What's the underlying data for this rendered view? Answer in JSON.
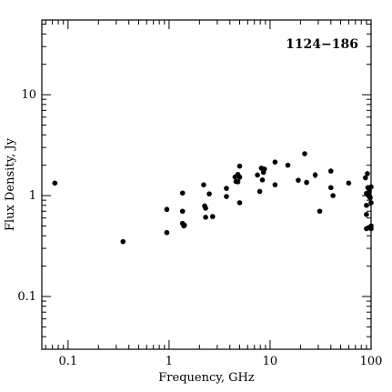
{
  "chart_data": {
    "type": "scatter",
    "title": "1124−186",
    "xlabel": "Frequency, GHz",
    "ylabel": "Flux Density, Jy",
    "xscale": "log",
    "yscale": "log",
    "xlim": [
      0.055,
      100
    ],
    "ylim": [
      0.03,
      55
    ],
    "xticks": [
      {
        "value": 0.1,
        "label": "0.1"
      },
      {
        "value": 1,
        "label": "1"
      },
      {
        "value": 10,
        "label": "10"
      },
      {
        "value": 100,
        "label": "100"
      }
    ],
    "yticks": [
      {
        "value": 0.1,
        "label": "0.1"
      },
      {
        "value": 1,
        "label": "1"
      },
      {
        "value": 10,
        "label": "10"
      }
    ],
    "grid": false,
    "legend": "none",
    "marker_color": "#000000",
    "points": [
      {
        "x": 0.074,
        "y": 1.33
      },
      {
        "x": 0.35,
        "y": 0.35
      },
      {
        "x": 0.95,
        "y": 0.73
      },
      {
        "x": 0.95,
        "y": 0.43
      },
      {
        "x": 1.36,
        "y": 1.06
      },
      {
        "x": 1.36,
        "y": 0.7
      },
      {
        "x": 1.36,
        "y": 0.53
      },
      {
        "x": 1.4,
        "y": 0.5
      },
      {
        "x": 1.42,
        "y": 0.51
      },
      {
        "x": 2.2,
        "y": 1.28
      },
      {
        "x": 2.25,
        "y": 0.79
      },
      {
        "x": 2.3,
        "y": 0.75
      },
      {
        "x": 2.3,
        "y": 0.61
      },
      {
        "x": 2.5,
        "y": 1.04
      },
      {
        "x": 2.7,
        "y": 0.62
      },
      {
        "x": 3.7,
        "y": 1.18
      },
      {
        "x": 3.7,
        "y": 0.98
      },
      {
        "x": 4.5,
        "y": 1.53
      },
      {
        "x": 4.6,
        "y": 1.38
      },
      {
        "x": 4.8,
        "y": 1.62
      },
      {
        "x": 4.8,
        "y": 1.37
      },
      {
        "x": 4.9,
        "y": 1.55
      },
      {
        "x": 5.0,
        "y": 1.96
      },
      {
        "x": 5.0,
        "y": 1.52
      },
      {
        "x": 5.0,
        "y": 0.85
      },
      {
        "x": 7.5,
        "y": 1.6
      },
      {
        "x": 7.9,
        "y": 1.1
      },
      {
        "x": 8.2,
        "y": 1.87
      },
      {
        "x": 8.4,
        "y": 1.43
      },
      {
        "x": 8.6,
        "y": 1.7
      },
      {
        "x": 8.8,
        "y": 1.83
      },
      {
        "x": 11.2,
        "y": 2.15
      },
      {
        "x": 11.2,
        "y": 1.28
      },
      {
        "x": 15.0,
        "y": 2.0
      },
      {
        "x": 19.0,
        "y": 1.42
      },
      {
        "x": 22.0,
        "y": 2.6
      },
      {
        "x": 23.0,
        "y": 1.35
      },
      {
        "x": 28.0,
        "y": 1.6,
        "yerr": 0.12
      },
      {
        "x": 31.0,
        "y": 0.7
      },
      {
        "x": 40.0,
        "y": 1.75
      },
      {
        "x": 40.0,
        "y": 1.2
      },
      {
        "x": 42.0,
        "y": 1.0
      },
      {
        "x": 60.0,
        "y": 1.33
      },
      {
        "x": 88.0,
        "y": 1.5
      },
      {
        "x": 90.0,
        "y": 1.05
      },
      {
        "x": 90.0,
        "y": 0.8
      },
      {
        "x": 90.0,
        "y": 0.65
      },
      {
        "x": 90.0,
        "y": 0.47
      },
      {
        "x": 92.0,
        "y": 1.65
      },
      {
        "x": 93.0,
        "y": 1.2
      },
      {
        "x": 94.0,
        "y": 1.0
      },
      {
        "x": 95.0,
        "y": 0.48
      },
      {
        "x": 96.0,
        "y": 1.1
      },
      {
        "x": 97.0,
        "y": 0.98
      },
      {
        "x": 98.0,
        "y": 0.95
      },
      {
        "x": 100.0,
        "y": 1.22
      },
      {
        "x": 100.0,
        "y": 0.85
      },
      {
        "x": 100.0,
        "y": 0.5
      },
      {
        "x": 100.0,
        "y": 0.47
      }
    ]
  }
}
